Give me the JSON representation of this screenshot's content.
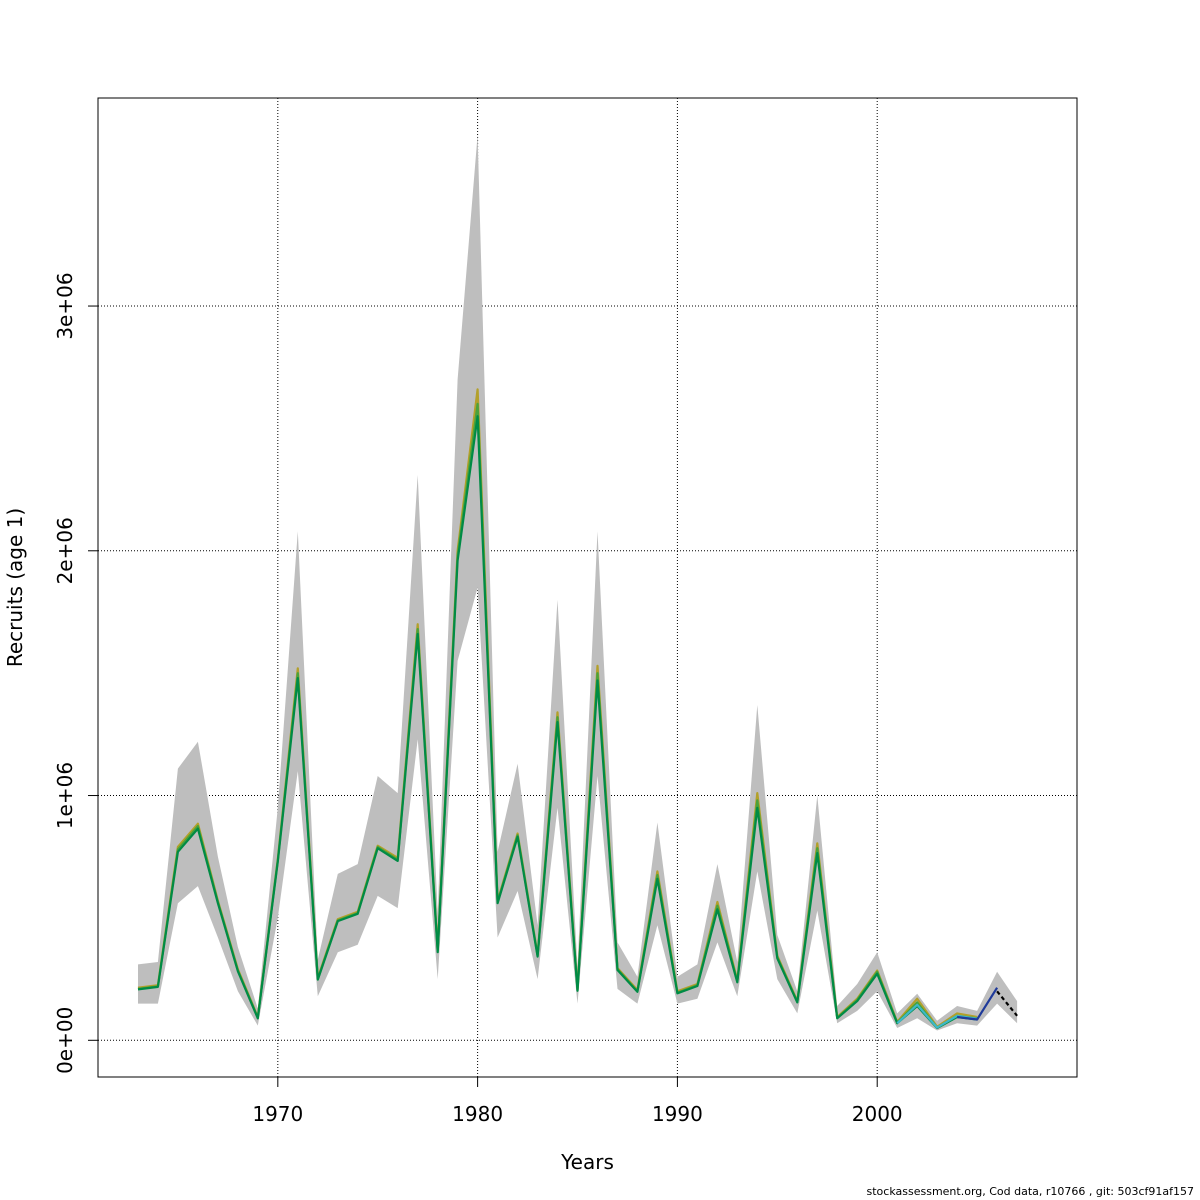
{
  "chart_data": {
    "type": "line",
    "xlabel": "Years",
    "ylabel": "Recruits (age 1)",
    "xlim": [
      1961,
      2010
    ],
    "ylim": [
      -150000,
      3850000
    ],
    "grid": true,
    "x_ticks": [
      1970,
      1980,
      1990,
      2000
    ],
    "y_ticks": [
      {
        "value": 0,
        "label": "0e+00"
      },
      {
        "value": 1000000,
        "label": "1e+06"
      },
      {
        "value": 2000000,
        "label": "2e+06"
      },
      {
        "value": 3000000,
        "label": "3e+06"
      }
    ],
    "band_color": "#bebebe",
    "confidence_band": {
      "x": [
        1963,
        1964,
        1965,
        1966,
        1967,
        1968,
        1969,
        1970,
        1971,
        1972,
        1973,
        1974,
        1975,
        1976,
        1977,
        1978,
        1979,
        1980,
        1981,
        1982,
        1983,
        1984,
        1985,
        1986,
        1987,
        1988,
        1989,
        1990,
        1991,
        1992,
        1993,
        1994,
        1995,
        1996,
        1997,
        1998,
        1999,
        2000,
        2001,
        2002,
        2003,
        2004,
        2005,
        2006,
        2007
      ],
      "lower": [
        150000,
        150000,
        560000,
        630000,
        420000,
        200000,
        60000,
        500000,
        1100000,
        180000,
        360000,
        390000,
        590000,
        540000,
        1230000,
        250000,
        1550000,
        1850000,
        420000,
        610000,
        250000,
        950000,
        150000,
        1080000,
        210000,
        150000,
        470000,
        150000,
        170000,
        400000,
        180000,
        690000,
        250000,
        110000,
        530000,
        70000,
        120000,
        200000,
        50000,
        90000,
        40000,
        70000,
        60000,
        150000,
        70000
      ],
      "upper": [
        310000,
        320000,
        1110000,
        1220000,
        750000,
        380000,
        130000,
        950000,
        2080000,
        330000,
        680000,
        720000,
        1080000,
        1010000,
        2310000,
        520000,
        2700000,
        3700000,
        770000,
        1130000,
        470000,
        1800000,
        300000,
        2080000,
        400000,
        260000,
        890000,
        260000,
        310000,
        720000,
        320000,
        1370000,
        430000,
        200000,
        1000000,
        140000,
        230000,
        360000,
        110000,
        190000,
        80000,
        140000,
        120000,
        280000,
        160000
      ]
    },
    "series": [
      {
        "color": "#b3a02a",
        "x": [
          1963,
          1964,
          1965,
          1966,
          1967,
          1968,
          1969,
          1970,
          1971,
          1972,
          1973,
          1974,
          1975,
          1976,
          1977,
          1978,
          1979,
          1980,
          1981,
          1982,
          1983,
          1984,
          1985,
          1986,
          1987,
          1988,
          1989,
          1990,
          1991,
          1992,
          1993,
          1994,
          1995,
          1996,
          1997,
          1998,
          1999,
          2000,
          2001,
          2002,
          2003,
          2004,
          2005
        ],
        "y": [
          215000,
          225000,
          790000,
          885000,
          570000,
          290000,
          95000,
          740000,
          1520000,
          255000,
          495000,
          525000,
          795000,
          745000,
          1700000,
          370000,
          2000000,
          2660000,
          570000,
          845000,
          350000,
          1340000,
          210000,
          1530000,
          295000,
          205000,
          690000,
          200000,
          230000,
          565000,
          245000,
          1010000,
          345000,
          160000,
          805000,
          95000,
          170000,
          285000,
          75000,
          170000,
          55000,
          110000,
          95000
        ]
      },
      {
        "color": "#4aa23b",
        "x": [
          1963,
          1964,
          1965,
          1966,
          1967,
          1968,
          1969,
          1970,
          1971,
          1972,
          1973,
          1974,
          1975,
          1976,
          1977,
          1978,
          1979,
          1980,
          1981,
          1982,
          1983,
          1984,
          1985,
          1986,
          1987,
          1988,
          1989,
          1990,
          1991,
          1992,
          1993,
          1994,
          1995,
          1996,
          1997,
          1998,
          1999,
          2000,
          2001,
          2002,
          2003,
          2004,
          2005
        ],
        "y": [
          210000,
          220000,
          780000,
          875000,
          565000,
          285000,
          92000,
          735000,
          1500000,
          250000,
          490000,
          520000,
          790000,
          738000,
          1680000,
          365000,
          1980000,
          2600000,
          565000,
          838000,
          345000,
          1320000,
          205000,
          1500000,
          290000,
          200000,
          675000,
          195000,
          225000,
          550000,
          240000,
          980000,
          340000,
          157000,
          785000,
          92000,
          165000,
          280000,
          72000,
          155000,
          52000,
          100000,
          90000
        ]
      },
      {
        "color": "#008b45",
        "x": [
          1963,
          1964,
          1965,
          1966,
          1967,
          1968,
          1969,
          1970,
          1971,
          1972,
          1973,
          1974,
          1975,
          1976,
          1977,
          1978,
          1979,
          1980,
          1981,
          1982,
          1983,
          1984,
          1985,
          1986,
          1987,
          1988,
          1989,
          1990,
          1991,
          1992,
          1993,
          1994,
          1995,
          1996,
          1997,
          1998,
          1999,
          2000,
          2001,
          2002,
          2003,
          2004,
          2005
        ],
        "y": [
          208000,
          218000,
          770000,
          865000,
          560000,
          282000,
          90000,
          730000,
          1480000,
          248000,
          487000,
          517000,
          785000,
          733000,
          1660000,
          360000,
          1960000,
          2550000,
          560000,
          832000,
          342000,
          1300000,
          202000,
          1470000,
          287000,
          198000,
          660000,
          192000,
          222000,
          535000,
          237000,
          950000,
          335000,
          155000,
          765000,
          90000,
          160000,
          272000,
          70000,
          140000,
          50000,
          95000,
          85000
        ]
      },
      {
        "color": "#3fb7c8",
        "x": [
          2001,
          2002,
          2003,
          2004,
          2005
        ],
        "y": [
          70000,
          145000,
          52000,
          100000,
          88000
        ]
      },
      {
        "color": "#1f3a9a",
        "x": [
          2004,
          2005,
          2006
        ],
        "y": [
          95000,
          85000,
          215000
        ]
      },
      {
        "color": "#000000",
        "dashed": true,
        "x": [
          2006,
          2007
        ],
        "y": [
          200000,
          100000
        ]
      }
    ]
  },
  "footer": "stockassessment.org, Cod  data, r10766 , git: 503cf91af157"
}
